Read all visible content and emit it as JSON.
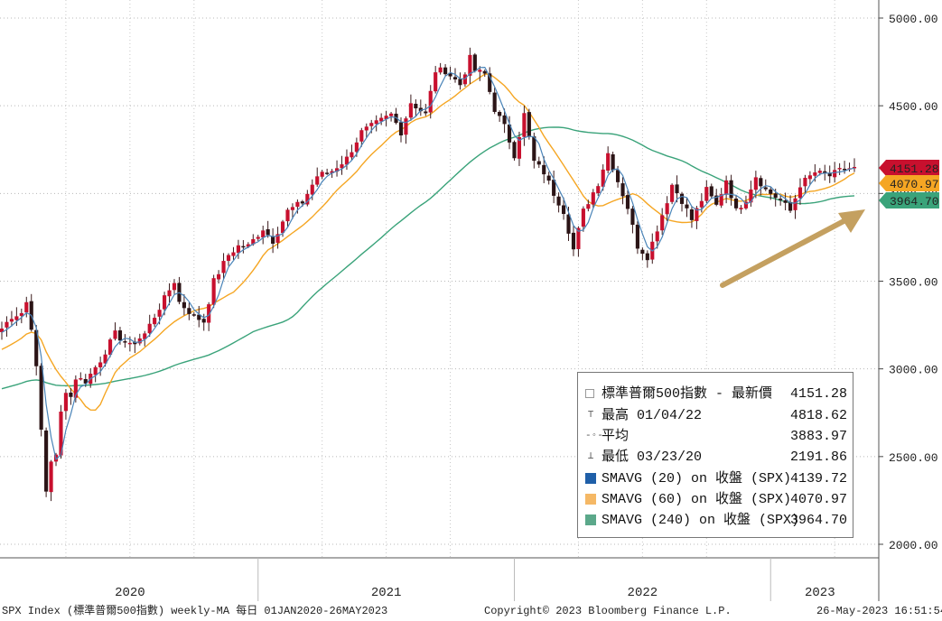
{
  "chart_data": {
    "type": "line",
    "y_ticks": [
      "5000.00",
      "4500.00",
      "4000.00",
      "3500.00",
      "3000.00",
      "2500.00",
      "2000.00"
    ],
    "ylim": [
      1960,
      5050
    ],
    "x_labels": [
      "2020",
      "2021",
      "2022",
      "2023"
    ],
    "grid": true,
    "legend_position": "bottom-right",
    "price_tags": [
      {
        "text": "4151.28",
        "value": 4151.28,
        "color": "#c8102e"
      },
      {
        "text": "4070.97",
        "value": 4070.97,
        "color": "#f5a623"
      },
      {
        "text": "3964.70",
        "value": 3964.7,
        "color": "#3aa37a"
      }
    ],
    "series": [
      {
        "name": "SPX",
        "color": "#c8102e",
        "kind": "candlestick",
        "anchors": [
          [
            0,
            3230
          ],
          [
            2,
            3300
          ],
          [
            4,
            3320
          ],
          [
            5,
            3380
          ],
          [
            6,
            3240
          ],
          [
            7,
            3000
          ],
          [
            8,
            2650
          ],
          [
            9,
            2304
          ],
          [
            10,
            2480
          ],
          [
            11,
            2500
          ],
          [
            12,
            2750
          ],
          [
            13,
            2880
          ],
          [
            14,
            2840
          ],
          [
            15,
            2950
          ],
          [
            17,
            2930
          ],
          [
            20,
            3050
          ],
          [
            23,
            3200
          ],
          [
            26,
            3130
          ],
          [
            29,
            3200
          ],
          [
            32,
            3350
          ],
          [
            35,
            3500
          ],
          [
            36,
            3380
          ],
          [
            39,
            3300
          ],
          [
            41,
            3270
          ],
          [
            43,
            3500
          ],
          [
            46,
            3650
          ],
          [
            48,
            3700
          ],
          [
            50,
            3700
          ],
          [
            53,
            3800
          ],
          [
            55,
            3730
          ],
          [
            58,
            3900
          ],
          [
            61,
            3950
          ],
          [
            64,
            4100
          ],
          [
            67,
            4130
          ],
          [
            70,
            4200
          ],
          [
            73,
            4350
          ],
          [
            76,
            4400
          ],
          [
            79,
            4450
          ],
          [
            81,
            4350
          ],
          [
            83,
            4520
          ],
          [
            86,
            4450
          ],
          [
            88,
            4700
          ],
          [
            90,
            4700
          ],
          [
            93,
            4620
          ],
          [
            95,
            4770
          ],
          [
            96,
            4700
          ],
          [
            98,
            4680
          ],
          [
            100,
            4480
          ],
          [
            102,
            4380
          ],
          [
            104,
            4220
          ],
          [
            106,
            4450
          ],
          [
            108,
            4180
          ],
          [
            110,
            4120
          ],
          [
            112,
            4000
          ],
          [
            114,
            3900
          ],
          [
            116,
            3680
          ],
          [
            118,
            3900
          ],
          [
            121,
            4060
          ],
          [
            123,
            4230
          ],
          [
            125,
            4070
          ],
          [
            127,
            3920
          ],
          [
            129,
            3700
          ],
          [
            131,
            3640
          ],
          [
            133,
            3800
          ],
          [
            135,
            3960
          ],
          [
            136,
            4050
          ],
          [
            138,
            3960
          ],
          [
            140,
            3850
          ],
          [
            143,
            4020
          ],
          [
            145,
            3930
          ],
          [
            147,
            4080
          ],
          [
            149,
            3900
          ],
          [
            151,
            3970
          ],
          [
            153,
            4100
          ],
          [
            155,
            4020
          ],
          [
            158,
            3960
          ],
          [
            160,
            3900
          ],
          [
            162,
            4050
          ],
          [
            165,
            4120
          ],
          [
            168,
            4100
          ],
          [
            170,
            4130
          ],
          [
            173,
            4151
          ]
        ]
      },
      {
        "name": "SMAVG (20)",
        "color": "#4a84b8",
        "kind": "line"
      },
      {
        "name": "SMAVG (60)",
        "color": "#f5a623",
        "kind": "line"
      },
      {
        "name": "SMAVG (240)",
        "color": "#3aa37a",
        "kind": "line"
      }
    ]
  },
  "legend": {
    "rows": [
      {
        "label": "標準普爾500指數 - 最新價",
        "value": "4151.28",
        "symbol_color": "#c8102e",
        "symbol_type": "box-plus"
      },
      {
        "label": "最高 01/04/22",
        "value": "4818.62",
        "symbol_type": "high"
      },
      {
        "label": "平均",
        "value": "3883.97",
        "symbol_type": "avg"
      },
      {
        "label": "最低 03/23/20",
        "value": "2191.86",
        "symbol_type": "low"
      },
      {
        "label": "SMAVG (20)  on 收盤 (SPX)",
        "value": "4139.72",
        "symbol_color": "#1f5fa8",
        "symbol_type": "square"
      },
      {
        "label": "SMAVG (60)  on 收盤 (SPX)",
        "value": "4070.97",
        "symbol_color": "#f5b865",
        "symbol_type": "square"
      },
      {
        "label": "SMAVG (240) on 收盤 (SPX)",
        "value": "3964.70",
        "symbol_color": "#5ba88a",
        "symbol_type": "square"
      }
    ]
  },
  "annotation": {
    "type": "arrow",
    "color": "#c4a060"
  },
  "footer": {
    "left": "SPX Index (標準普爾500指數) weekly-MA  每日 01JAN2020-26MAY2023",
    "center": "Copyright© 2023 Bloomberg Finance L.P.",
    "right": "26-May-2023  16:51:54"
  }
}
